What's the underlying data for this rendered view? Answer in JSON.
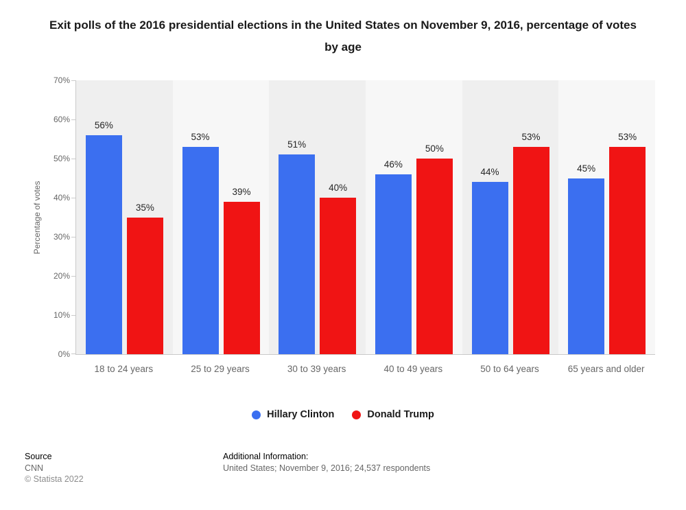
{
  "title": "Exit polls of the 2016 presidential elections in the United States on November 9, 2016, percentage of votes by age",
  "chart_data": {
    "type": "bar",
    "categories": [
      "18 to 24 years",
      "25 to 29 years",
      "30 to 39 years",
      "40 to 49 years",
      "50 to 64 years",
      "65 years and older"
    ],
    "series": [
      {
        "name": "Hillary Clinton",
        "color": "#3b6ff0",
        "values": [
          56,
          53,
          51,
          46,
          44,
          45
        ]
      },
      {
        "name": "Donald Trump",
        "color": "#f01414",
        "values": [
          35,
          39,
          40,
          50,
          53,
          53
        ]
      }
    ],
    "title": "Exit polls of the 2016 presidential elections in the United States on November 9, 2016, percentage of votes by age",
    "xlabel": "",
    "ylabel": "Percentage of votes",
    "ylim": [
      0,
      70
    ],
    "ytick_step": 10,
    "ytick_labels": [
      "0%",
      "10%",
      "20%",
      "30%",
      "40%",
      "50%",
      "60%",
      "70%"
    ],
    "value_suffix": "%",
    "grid": false,
    "legend_position": "bottom"
  },
  "footer": {
    "source_label": "Source",
    "source_value": "CNN",
    "copyright": "© Statista 2022",
    "additional_label": "Additional Information:",
    "additional_value": "United States; November 9, 2016; 24,537 respondents"
  }
}
